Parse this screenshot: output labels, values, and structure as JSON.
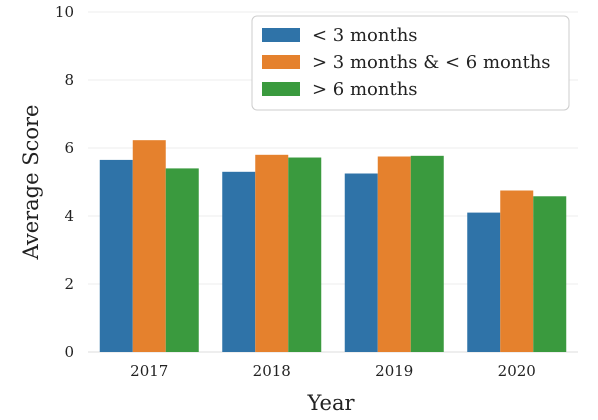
{
  "chart_data": {
    "type": "bar",
    "categories": [
      "2017",
      "2018",
      "2019",
      "2020"
    ],
    "series": [
      {
        "name": "< 3 months",
        "values": [
          5.65,
          5.3,
          5.25,
          4.1
        ],
        "color": "#2f73a8"
      },
      {
        "name": "> 3 months & < 6 months",
        "values": [
          6.23,
          5.8,
          5.75,
          4.75
        ],
        "color": "#e5812d"
      },
      {
        "name": "> 6 months",
        "values": [
          5.4,
          5.72,
          5.77,
          4.58
        ],
        "color": "#3a9a3e"
      }
    ],
    "xlabel": "Year",
    "ylabel": "Average Score",
    "ylim": [
      0,
      10
    ],
    "yticks": [
      0,
      2,
      4,
      6,
      8,
      10
    ],
    "grid": "horizontal",
    "legend_position": "top-right"
  }
}
